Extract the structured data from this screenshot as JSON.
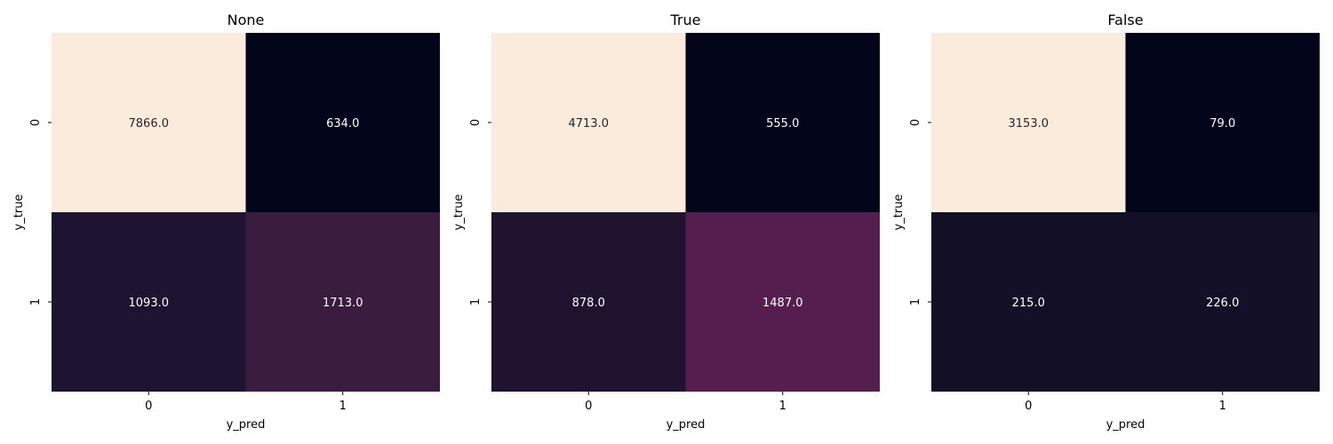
{
  "chart_data": [
    {
      "type": "heatmap",
      "title": "None",
      "xlabel": "y_pred",
      "ylabel": "y_true",
      "x_categories": [
        "0",
        "1"
      ],
      "y_categories": [
        "0",
        "1"
      ],
      "values": [
        [
          7866.0,
          634.0
        ],
        [
          1093.0,
          1713.0
        ]
      ],
      "value_labels": [
        [
          "7866.0",
          "634.0"
        ],
        [
          "1093.0",
          "1713.0"
        ]
      ],
      "colorbar": false,
      "colormap": "rocket"
    },
    {
      "type": "heatmap",
      "title": "True",
      "xlabel": "y_pred",
      "ylabel": "y_true",
      "x_categories": [
        "0",
        "1"
      ],
      "y_categories": [
        "0",
        "1"
      ],
      "values": [
        [
          4713.0,
          555.0
        ],
        [
          878.0,
          1487.0
        ]
      ],
      "value_labels": [
        [
          "4713.0",
          "555.0"
        ],
        [
          "878.0",
          "1487.0"
        ]
      ],
      "colorbar": false,
      "colormap": "rocket"
    },
    {
      "type": "heatmap",
      "title": "False",
      "xlabel": "y_pred",
      "ylabel": "y_true",
      "x_categories": [
        "0",
        "1"
      ],
      "y_categories": [
        "0",
        "1"
      ],
      "values": [
        [
          3153.0,
          79.0
        ],
        [
          215.0,
          226.0
        ]
      ],
      "value_labels": [
        [
          "3153.0",
          "79.0"
        ],
        [
          "215.0",
          "226.0"
        ]
      ],
      "colorbar": false,
      "colormap": "rocket"
    }
  ],
  "colors": {
    "cell_fills": [
      [
        "#faebdd",
        "#03051a"
      ],
      [
        "#1e1330",
        "#3a1c3e"
      ],
      [
        "#faebdd",
        "#03051a"
      ],
      [
        "#1f1330",
        "#561e4f"
      ],
      [
        "#faebdd",
        "#03051a"
      ],
      [
        "#130f27",
        "#130f27"
      ]
    ],
    "label_dark": "#262626",
    "label_light": "#ffffff"
  }
}
